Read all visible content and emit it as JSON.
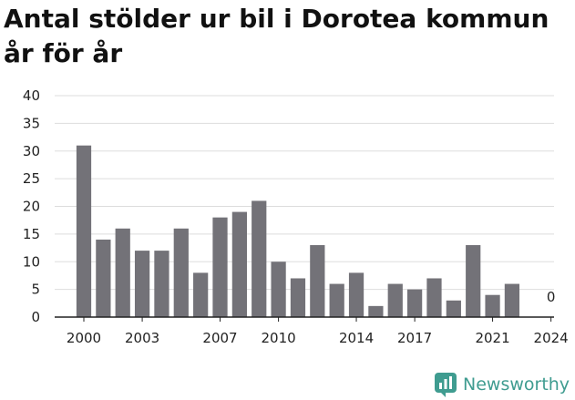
{
  "chart_data": {
    "type": "bar",
    "title_lines": [
      "Antal stölder ur bil i Dorotea kommun",
      "år för år"
    ],
    "years": [
      2000,
      2001,
      2002,
      2003,
      2004,
      2005,
      2006,
      2007,
      2008,
      2009,
      2010,
      2011,
      2012,
      2013,
      2014,
      2015,
      2016,
      2017,
      2018,
      2019,
      2020,
      2021,
      2022,
      2023,
      2024
    ],
    "values": [
      31,
      14,
      16,
      12,
      12,
      16,
      8,
      18,
      19,
      21,
      10,
      7,
      13,
      6,
      8,
      2,
      6,
      5,
      7,
      3,
      13,
      4,
      6,
      null,
      0
    ],
    "x_tick_labels": [
      "2000",
      "2003",
      "2007",
      "2010",
      "2014",
      "2017",
      "2021",
      "2024"
    ],
    "y_ticks": [
      0,
      5,
      10,
      15,
      20,
      25,
      30,
      35,
      40
    ],
    "ylim": [
      0,
      40
    ],
    "annotation": {
      "year": 2024,
      "text": "0"
    },
    "bar_color": "#737278",
    "grid": true
  },
  "branding": {
    "name": "Newsworthy",
    "color": "#3f9c90"
  }
}
